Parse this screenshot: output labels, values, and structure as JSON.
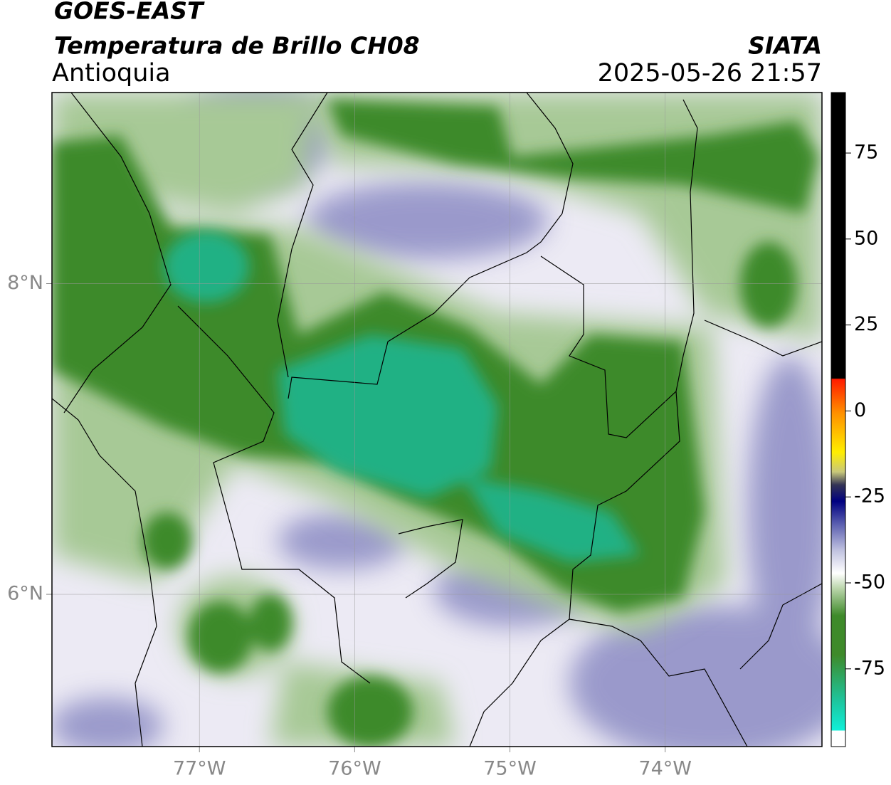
{
  "header": {
    "satellite": "GOES-EAST",
    "product": "Temperatura de Brillo CH08",
    "region": "Antioquia",
    "source": "SIATA",
    "datetime": "2025-05-26 21:57"
  },
  "map": {
    "lonlim": [
      -77.95,
      -72.99
    ],
    "latlim": [
      5.02,
      9.23
    ],
    "lon_ticks": [
      {
        "value": -77,
        "label": "77°W"
      },
      {
        "value": -76,
        "label": "76°W"
      },
      {
        "value": -75,
        "label": "75°W"
      },
      {
        "value": -74,
        "label": "74°W"
      }
    ],
    "lat_ticks": [
      {
        "value": 8,
        "label": "8°N"
      },
      {
        "value": 6,
        "label": "6°N"
      }
    ],
    "grid": true
  },
  "colorbar": {
    "lim": [
      -97.6,
      92.6
    ],
    "ticks": [
      75,
      50,
      25,
      0,
      -25,
      -50,
      -75
    ]
  }
}
